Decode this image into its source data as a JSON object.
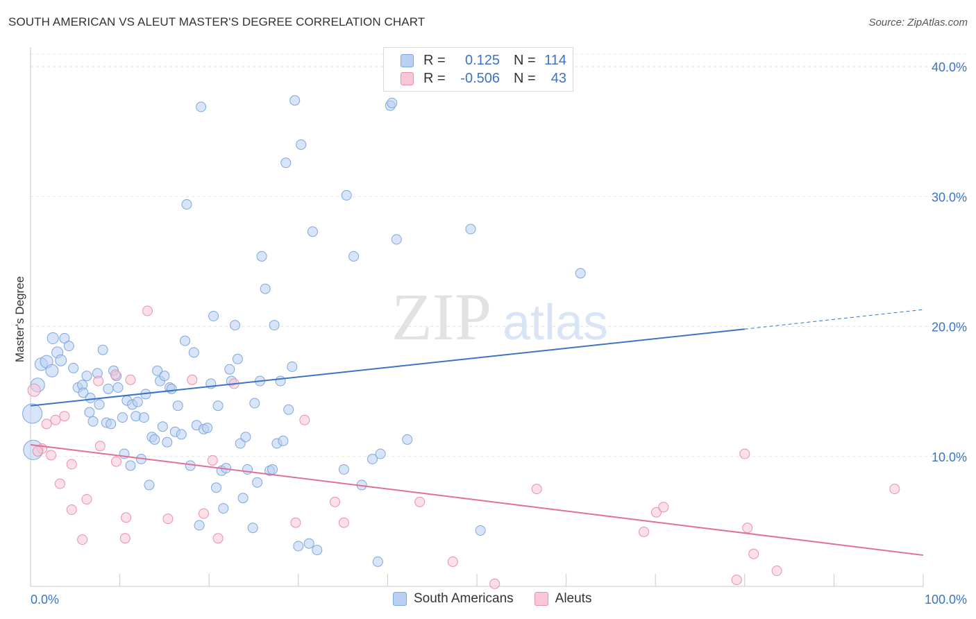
{
  "header": {
    "title": "SOUTH AMERICAN VS ALEUT MASTER'S DEGREE CORRELATION CHART",
    "source": "Source: ZipAtlas.com"
  },
  "watermark": {
    "zip": "ZIP",
    "atlas": "atlas"
  },
  "legend": {
    "r_label": "R =",
    "n_label": "N =",
    "rows": [
      {
        "r": "0.125",
        "n": "114",
        "color": "#b8d0f2",
        "border": "#7ea6e0"
      },
      {
        "r": "-0.506",
        "n": "43",
        "color": "#f8c6d6",
        "border": "#eb8fae"
      }
    ]
  },
  "bottom_legend": [
    {
      "label": "South Americans",
      "color": "#b8d0f2",
      "border": "#7ea6e0"
    },
    {
      "label": "Aleuts",
      "color": "#f8c6d6",
      "border": "#eb8fae"
    }
  ],
  "chart_data": {
    "type": "scatter",
    "title": "SOUTH AMERICAN VS ALEUT MASTER'S DEGREE CORRELATION CHART",
    "xlabel": "",
    "ylabel": "Master's Degree",
    "xlim": [
      0,
      100
    ],
    "ylim": [
      0,
      40
    ],
    "x_tick_labels": [
      {
        "value": 0,
        "label": "0.0%"
      },
      {
        "value": 100,
        "label": "100.0%"
      }
    ],
    "y_tick_labels": [
      {
        "value": 10,
        "label": "10.0%"
      },
      {
        "value": 20,
        "label": "20.0%"
      },
      {
        "value": 30,
        "label": "30.0%"
      },
      {
        "value": 40,
        "label": "40.0%"
      }
    ],
    "grid": true,
    "series": [
      {
        "name": "South Americans",
        "color": "#7ea6e0",
        "fill": "#b8d0f2",
        "trend": {
          "x0": 0,
          "y0": 13.9,
          "x1": 80,
          "y1": 19.8,
          "dash_to_x": 100,
          "dash_to_y": 21.3,
          "color": "#3b73c7"
        },
        "points": [
          [
            0.2,
            13.3,
            14
          ],
          [
            0.3,
            10.5,
            14
          ],
          [
            0.8,
            15.5,
            10
          ],
          [
            1.2,
            17.1,
            9
          ],
          [
            1.8,
            17.3,
            9
          ],
          [
            2.4,
            16.6,
            9
          ],
          [
            2.5,
            19.1,
            8
          ],
          [
            3.0,
            18.0,
            8
          ],
          [
            3.4,
            17.4,
            8
          ],
          [
            3.8,
            19.1,
            7
          ],
          [
            4.3,
            18.5,
            7
          ],
          [
            4.8,
            16.8,
            7
          ],
          [
            5.3,
            15.3,
            7
          ],
          [
            5.8,
            15.5,
            7
          ],
          [
            5.9,
            14.9,
            7
          ],
          [
            6.3,
            16.2,
            7
          ],
          [
            6.6,
            13.4,
            7
          ],
          [
            6.7,
            14.5,
            7
          ],
          [
            7.0,
            12.7,
            7
          ],
          [
            7.5,
            16.4,
            7
          ],
          [
            7.7,
            14.0,
            7
          ],
          [
            8.1,
            18.2,
            7
          ],
          [
            8.5,
            12.6,
            7
          ],
          [
            8.7,
            15.2,
            7
          ],
          [
            9.0,
            12.5,
            7
          ],
          [
            9.3,
            16.6,
            7
          ],
          [
            9.6,
            16.2,
            7
          ],
          [
            9.8,
            15.3,
            7
          ],
          [
            10.3,
            13.0,
            7
          ],
          [
            10.5,
            10.2,
            7
          ],
          [
            10.8,
            14.3,
            7
          ],
          [
            11.2,
            9.3,
            7
          ],
          [
            11.4,
            14.0,
            7
          ],
          [
            11.8,
            13.1,
            7
          ],
          [
            12.0,
            14.2,
            7
          ],
          [
            12.4,
            9.8,
            7
          ],
          [
            12.7,
            13.0,
            7
          ],
          [
            12.9,
            14.8,
            7
          ],
          [
            13.3,
            7.8,
            7
          ],
          [
            13.6,
            11.5,
            7
          ],
          [
            13.9,
            11.3,
            7
          ],
          [
            14.2,
            16.6,
            7
          ],
          [
            14.5,
            15.8,
            7
          ],
          [
            14.8,
            12.3,
            7
          ],
          [
            15.0,
            16.2,
            7
          ],
          [
            15.3,
            11.1,
            7
          ],
          [
            15.6,
            15.3,
            7
          ],
          [
            15.8,
            15.2,
            7
          ],
          [
            16.2,
            11.9,
            7
          ],
          [
            16.5,
            13.9,
            7
          ],
          [
            16.9,
            11.7,
            7
          ],
          [
            17.3,
            18.9,
            7
          ],
          [
            17.5,
            29.4,
            7
          ],
          [
            17.9,
            9.3,
            7
          ],
          [
            18.3,
            18.0,
            7
          ],
          [
            18.6,
            12.4,
            7
          ],
          [
            18.9,
            4.7,
            7
          ],
          [
            19.1,
            36.9,
            7
          ],
          [
            19.4,
            12.1,
            7
          ],
          [
            19.8,
            12.2,
            7
          ],
          [
            20.2,
            15.6,
            7
          ],
          [
            20.5,
            20.8,
            7
          ],
          [
            20.8,
            7.6,
            7
          ],
          [
            21.0,
            13.9,
            7
          ],
          [
            21.4,
            8.9,
            7
          ],
          [
            21.6,
            6.0,
            7
          ],
          [
            21.9,
            9.1,
            7
          ],
          [
            22.3,
            16.7,
            7
          ],
          [
            22.5,
            15.8,
            7
          ],
          [
            22.9,
            20.1,
            7
          ],
          [
            23.2,
            17.5,
            7
          ],
          [
            23.5,
            11.0,
            7
          ],
          [
            23.8,
            6.8,
            7
          ],
          [
            24.1,
            11.5,
            7
          ],
          [
            24.3,
            9.0,
            7
          ],
          [
            24.9,
            4.5,
            7
          ],
          [
            25.1,
            14.1,
            7
          ],
          [
            25.4,
            8.0,
            7
          ],
          [
            25.7,
            15.8,
            7
          ],
          [
            25.9,
            25.4,
            7
          ],
          [
            26.3,
            22.9,
            7
          ],
          [
            26.8,
            8.9,
            7
          ],
          [
            27.1,
            9.0,
            7
          ],
          [
            27.3,
            20.1,
            7
          ],
          [
            27.6,
            11.0,
            7
          ],
          [
            28.0,
            15.8,
            7
          ],
          [
            28.3,
            11.2,
            7
          ],
          [
            28.6,
            32.6,
            7
          ],
          [
            28.9,
            13.6,
            7
          ],
          [
            29.3,
            16.9,
            7
          ],
          [
            29.6,
            37.4,
            7
          ],
          [
            30.0,
            3.1,
            7
          ],
          [
            30.3,
            34.0,
            7
          ],
          [
            31.2,
            3.3,
            7
          ],
          [
            31.6,
            27.3,
            7
          ],
          [
            32.1,
            2.8,
            7
          ],
          [
            35.1,
            9.0,
            7
          ],
          [
            35.4,
            30.1,
            7
          ],
          [
            36.2,
            25.4,
            7
          ],
          [
            37.1,
            7.8,
            7
          ],
          [
            38.3,
            9.8,
            7
          ],
          [
            39.2,
            10.2,
            7
          ],
          [
            38.9,
            1.9,
            7
          ],
          [
            40.3,
            37.0,
            7
          ],
          [
            40.5,
            37.2,
            7
          ],
          [
            41.0,
            26.7,
            7
          ],
          [
            42.2,
            11.3,
            7
          ],
          [
            49.3,
            27.5,
            7
          ],
          [
            50.4,
            4.3,
            7
          ],
          [
            61.6,
            24.1,
            7
          ]
        ]
      },
      {
        "name": "Aleuts",
        "color": "#eb8fae",
        "fill": "#f8c6d6",
        "trend": {
          "x0": 0,
          "y0": 10.9,
          "x1": 100,
          "y1": 2.4,
          "color": "#e06f98"
        },
        "points": [
          [
            0.4,
            15.1,
            9
          ],
          [
            1.3,
            10.6,
            7
          ],
          [
            1.8,
            12.5,
            7
          ],
          [
            2.3,
            10.1,
            7
          ],
          [
            2.8,
            12.8,
            7
          ],
          [
            3.3,
            7.9,
            7
          ],
          [
            3.8,
            13.1,
            7
          ],
          [
            4.6,
            9.4,
            7
          ],
          [
            4.6,
            5.9,
            7
          ],
          [
            5.8,
            3.6,
            7
          ],
          [
            6.3,
            6.7,
            7
          ],
          [
            7.6,
            15.8,
            7
          ],
          [
            7.8,
            10.8,
            7
          ],
          [
            9.5,
            16.3,
            7
          ],
          [
            9.6,
            9.6,
            7
          ],
          [
            10.6,
            3.7,
            7
          ],
          [
            10.7,
            5.3,
            7
          ],
          [
            11.2,
            15.9,
            7
          ],
          [
            13.1,
            21.2,
            7
          ],
          [
            15.4,
            5.2,
            7
          ],
          [
            18.1,
            15.9,
            7
          ],
          [
            19.4,
            5.6,
            7
          ],
          [
            20.4,
            9.7,
            7
          ],
          [
            21.0,
            3.7,
            7
          ],
          [
            22.8,
            15.6,
            7
          ],
          [
            29.7,
            4.9,
            7
          ],
          [
            30.7,
            12.8,
            7
          ],
          [
            34.1,
            6.5,
            7
          ],
          [
            35.1,
            4.9,
            7
          ],
          [
            43.6,
            6.5,
            7
          ],
          [
            47.3,
            1.9,
            7
          ],
          [
            52.0,
            0.2,
            7
          ],
          [
            56.7,
            7.5,
            7
          ],
          [
            68.7,
            4.2,
            7
          ],
          [
            70.1,
            5.7,
            7
          ],
          [
            70.9,
            6.1,
            7
          ],
          [
            79.1,
            0.5,
            7
          ],
          [
            80.0,
            10.2,
            7
          ],
          [
            80.3,
            4.5,
            7
          ],
          [
            81.0,
            2.5,
            7
          ],
          [
            83.6,
            1.2,
            7
          ],
          [
            96.8,
            7.5,
            7
          ],
          [
            0.8,
            10.4,
            7
          ]
        ]
      }
    ]
  }
}
